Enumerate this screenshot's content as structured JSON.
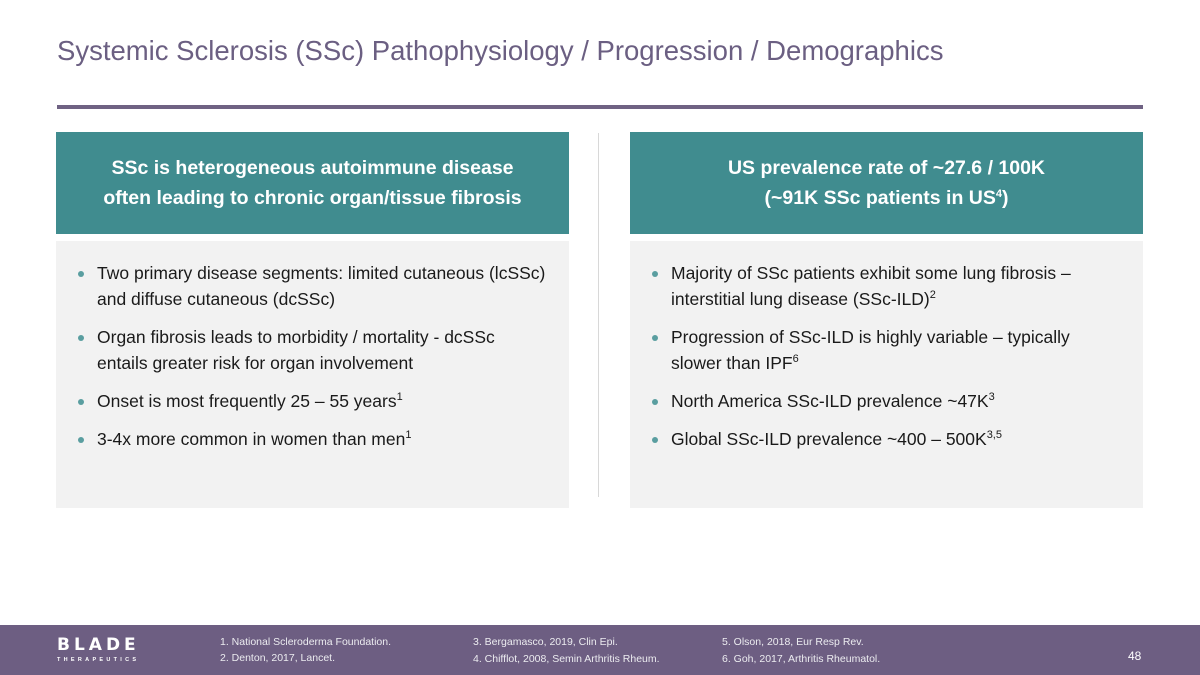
{
  "title": "Systemic Sclerosis (SSc) Pathophysiology / Progression / Demographics",
  "left": {
    "header": [
      "SSc is heterogeneous autoimmune disease",
      "often leading to chronic organ/tissue fibrosis"
    ],
    "items": [
      {
        "text": "Two primary disease segments: limited cutaneous (lcSSc) and diffuse cutaneous (dcSSc)",
        "sup": ""
      },
      {
        "text": "Organ fibrosis leads to morbidity / mortality - dcSSc entails greater risk for organ involvement",
        "sup": ""
      },
      {
        "text": "Onset is most frequently 25 – 55 years",
        "sup": "1"
      },
      {
        "text": "3-4x more common in women than men",
        "sup": "1"
      }
    ]
  },
  "right": {
    "header": [
      "US prevalence rate of ~27.6 / 100K",
      "(~91K SSc patients in US",
      "4",
      ")"
    ],
    "items": [
      {
        "text": "Majority of SSc patients exhibit some lung fibrosis – interstitial lung disease (SSc-ILD)",
        "sup": "2"
      },
      {
        "text": "Progression of SSc-ILD is highly variable – typically slower than IPF",
        "sup": "6"
      },
      {
        "text": "North America SSc-ILD prevalence ~47K",
        "sup": "3"
      },
      {
        "text": "Global SSc-ILD prevalence ~400 – 500K",
        "sup": "3,5"
      }
    ]
  },
  "footer": {
    "logo": {
      "name": "BLADE",
      "sub": "THERAPEUTICS"
    },
    "refs": [
      "1. National Scleroderma Foundation.",
      "2. Denton, 2017, Lancet.",
      "3.  Bergamasco, 2019, Clin Epi.",
      "4.  Chifflot, 2008, Semin Arthritis Rheum.",
      "5.  Olson, 2018, Eur Resp Rev.",
      "6.  Goh, 2017, Arthritis Rheumatol."
    ],
    "page": "48"
  },
  "colors": {
    "teal": "#408c8f",
    "purple": "#6d5e82"
  }
}
